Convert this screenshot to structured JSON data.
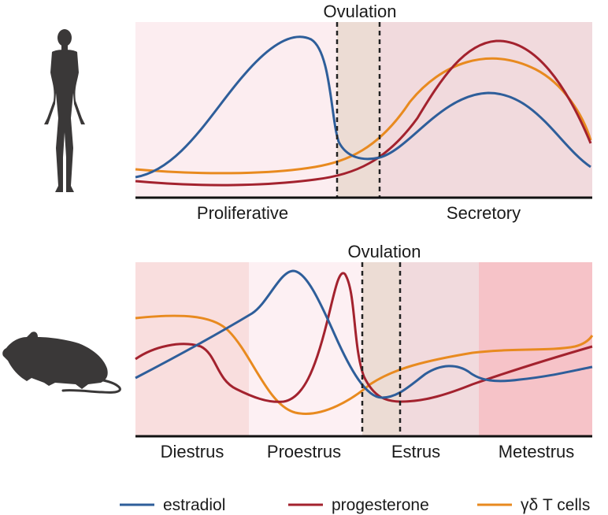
{
  "colors": {
    "estradiol": "#2e5e9a",
    "progesterone": "#a3222e",
    "gd_t_cells": "#e88a1f",
    "silhouette": "#3a3838"
  },
  "human_panel": {
    "ovulation_label": "Ovulation",
    "phases": [
      "Proliferative",
      "Secretory"
    ],
    "icon": "human-silhouette-icon"
  },
  "mouse_panel": {
    "ovulation_label": "Ovulation",
    "phases": [
      "Diestrus",
      "Proestrus",
      "Estrus",
      "Metestrus"
    ],
    "icon": "mouse-silhouette-icon"
  },
  "legend": {
    "items": [
      {
        "label": "estradiol",
        "color": "#2e5e9a"
      },
      {
        "label": "progesterone",
        "color": "#a3222e"
      },
      {
        "label": "γδ T cells",
        "color": "#e88a1f"
      }
    ]
  }
}
